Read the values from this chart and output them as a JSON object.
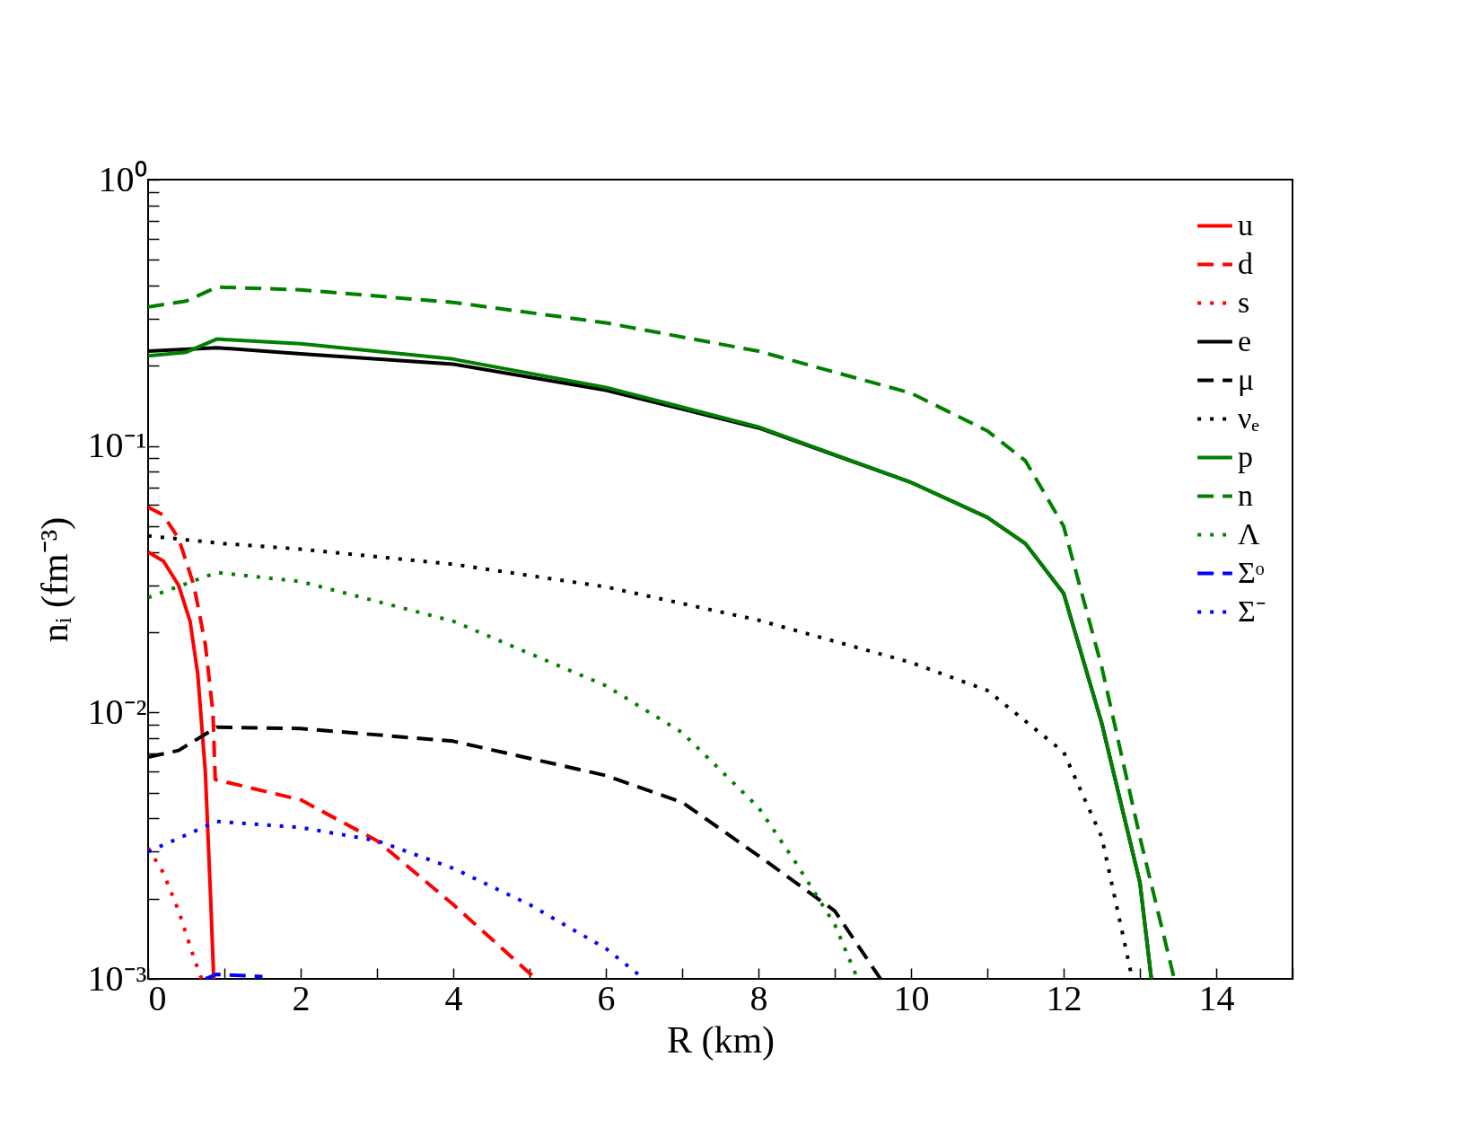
{
  "chart_data": {
    "type": "line",
    "xlabel": "R (km)",
    "ylabel": "nᵢ (fm⁻³)",
    "log": "y",
    "grid": false,
    "legend": "top right",
    "xlim": [
      0,
      15
    ],
    "ylim": [
      0.001,
      1
    ],
    "xticks": [
      0,
      {
        "value": 1,
        "label": null
      },
      2,
      {
        "value": 3,
        "label": null
      },
      4,
      {
        "value": 5,
        "label": null
      },
      6,
      {
        "value": 7,
        "label": null
      },
      8,
      {
        "value": 9,
        "label": null
      },
      10,
      {
        "value": 11,
        "label": null
      },
      12,
      {
        "value": 13,
        "label": null
      },
      14,
      {
        "value": 15,
        "label": null
      }
    ],
    "yticks": [
      {
        "value": 0.001,
        "label": "10⁻³"
      },
      {
        "value": 0.002,
        "label": null
      },
      {
        "value": 0.003,
        "label": null
      },
      {
        "value": 0.004,
        "label": null
      },
      {
        "value": 0.005,
        "label": null
      },
      {
        "value": 0.006,
        "label": null
      },
      {
        "value": 0.007,
        "label": null
      },
      {
        "value": 0.008,
        "label": null
      },
      {
        "value": 0.009,
        "label": null
      },
      {
        "value": 0.01,
        "label": "10⁻²"
      },
      {
        "value": 0.02,
        "label": null
      },
      {
        "value": 0.03,
        "label": null
      },
      {
        "value": 0.04,
        "label": null
      },
      {
        "value": 0.05,
        "label": null
      },
      {
        "value": 0.06,
        "label": null
      },
      {
        "value": 0.07,
        "label": null
      },
      {
        "value": 0.08,
        "label": null
      },
      {
        "value": 0.09,
        "label": null
      },
      {
        "value": 0.1,
        "label": "10⁻¹"
      },
      {
        "value": 0.2,
        "label": null
      },
      {
        "value": 0.3,
        "label": null
      },
      {
        "value": 0.4,
        "label": null
      },
      {
        "value": 0.5,
        "label": null
      },
      {
        "value": 0.6,
        "label": null
      },
      {
        "value": 0.7,
        "label": null
      },
      {
        "value": 0.8,
        "label": null
      },
      {
        "value": 0.9,
        "label": null
      },
      {
        "value": 1,
        "label": "10⁰"
      }
    ],
    "series": [
      {
        "name": "u",
        "color": "#ff0000",
        "line_style": "solid",
        "x": [
          0,
          0.2,
          0.4,
          0.55,
          0.65,
          0.75,
          0.82,
          0.86
        ],
        "values": [
          0.04,
          0.037,
          0.03,
          0.022,
          0.014,
          0.006,
          0.002,
          0.001
        ]
      },
      {
        "name": "d",
        "color": "#ff0000",
        "line_style": "dashed",
        "x": [
          0,
          0.2,
          0.4,
          0.6,
          0.75,
          0.85,
          0.88,
          2,
          3,
          4,
          5,
          5.1
        ],
        "values": [
          0.059,
          0.055,
          0.045,
          0.03,
          0.018,
          0.01,
          0.0056,
          0.0047,
          0.0033,
          0.0019,
          0.00105,
          0.001
        ]
      },
      {
        "name": "s",
        "color": "#ff0000",
        "line_style": "dotted",
        "x": [
          0,
          0.2,
          0.4,
          0.6,
          0.7
        ],
        "values": [
          0.0031,
          0.0025,
          0.0018,
          0.0012,
          0.001
        ]
      },
      {
        "name": "e",
        "color": "#000000",
        "line_style": "solid",
        "x": [
          0,
          0.9,
          2,
          4,
          6,
          8,
          10,
          11,
          11.5,
          12,
          12.5,
          13,
          13.15
        ],
        "values": [
          0.227,
          0.234,
          0.222,
          0.203,
          0.162,
          0.117,
          0.073,
          0.054,
          0.043,
          0.028,
          0.0091,
          0.0023,
          0.001
        ]
      },
      {
        "name": "μ",
        "color": "#000000",
        "line_style": "dashed",
        "x": [
          0,
          0.4,
          0.9,
          2,
          4,
          6,
          7,
          8,
          9,
          9.6
        ],
        "values": [
          0.0068,
          0.0072,
          0.0088,
          0.0087,
          0.0078,
          0.0058,
          0.0046,
          0.0029,
          0.0018,
          0.001
        ]
      },
      {
        "name": "νₑ",
        "color": "#000000",
        "line_style": "dotted",
        "x": [
          0,
          1,
          2,
          4,
          6,
          8,
          10,
          11,
          12,
          12.5,
          12.9
        ],
        "values": [
          0.046,
          0.043,
          0.041,
          0.036,
          0.0296,
          0.0222,
          0.0154,
          0.0121,
          0.0071,
          0.0034,
          0.001
        ]
      },
      {
        "name": "p",
        "color": "#008000",
        "line_style": "solid",
        "x": [
          0,
          0.5,
          0.9,
          2,
          4,
          6,
          8,
          10,
          11,
          11.5,
          12,
          12.5,
          13,
          13.15
        ],
        "values": [
          0.218,
          0.225,
          0.252,
          0.242,
          0.212,
          0.166,
          0.118,
          0.073,
          0.054,
          0.043,
          0.028,
          0.0091,
          0.0023,
          0.001
        ]
      },
      {
        "name": "n",
        "color": "#008000",
        "line_style": "dashed",
        "x": [
          0,
          0.5,
          0.9,
          2,
          4,
          6,
          8,
          10,
          11,
          11.5,
          12,
          12.5,
          13,
          13.45
        ],
        "values": [
          0.333,
          0.35,
          0.395,
          0.386,
          0.346,
          0.29,
          0.227,
          0.158,
          0.114,
          0.088,
          0.05,
          0.0148,
          0.0034,
          0.001
        ]
      },
      {
        "name": "Λ",
        "color": "#008000",
        "line_style": "dotted",
        "x": [
          0,
          0.9,
          2,
          4,
          6,
          7,
          8,
          8.5,
          9,
          9.3
        ],
        "values": [
          0.027,
          0.0335,
          0.031,
          0.022,
          0.0126,
          0.0084,
          0.0044,
          0.0027,
          0.0016,
          0.001
        ]
      },
      {
        "name": "Σᵒ",
        "color": "#0000ff",
        "line_style": "dashed",
        "x": [
          0.75,
          0.9,
          1.5
        ],
        "values": [
          0.001,
          0.00104,
          0.00102
        ]
      },
      {
        "name": "Σ⁻",
        "color": "#0000ff",
        "line_style": "dotted",
        "x": [
          0,
          0.9,
          2,
          3,
          4,
          5,
          6,
          6.5
        ],
        "values": [
          0.003,
          0.0039,
          0.0037,
          0.0033,
          0.0026,
          0.0019,
          0.0013,
          0.001
        ]
      }
    ]
  }
}
